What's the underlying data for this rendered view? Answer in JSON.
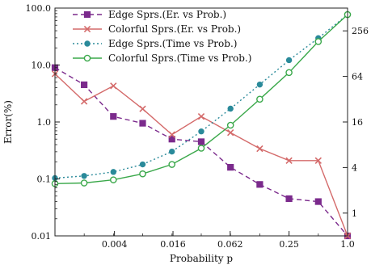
{
  "chart_data": {
    "type": "line",
    "xlabel": "Probability p",
    "ylabel": "Error(%)",
    "x_scale": "log2",
    "y_scale": "log10",
    "y2_scale": "log2",
    "xlim": [
      0.000977,
      1.0
    ],
    "ylim": [
      0.01,
      100.0
    ],
    "y2lim": [
      0.5,
      512
    ],
    "x_ticks": [
      0.004,
      0.016,
      0.062,
      0.25,
      1.0
    ],
    "x_tick_labels": [
      "0.004",
      "0.016",
      "0.062",
      "0.25",
      "1.0"
    ],
    "y_ticks": [
      0.01,
      0.1,
      1.0,
      10.0,
      100.0
    ],
    "y_tick_labels": [
      "0.01",
      "0.1",
      "1.0",
      "10.0",
      "100.0"
    ],
    "y2_ticks": [
      1,
      4,
      16,
      64,
      256
    ],
    "y2_tick_labels": [
      "1",
      "4",
      "16",
      "64",
      "256"
    ],
    "legend_position": "top-left",
    "grid": false,
    "series": [
      {
        "name": "Edge Sprs.(Er. vs Prob.)",
        "axis": "left",
        "color": "#7b2a8c",
        "dash": "dashed",
        "marker": "square",
        "x": [
          0.000977,
          0.00195,
          0.0039,
          0.0078,
          0.0156,
          0.03125,
          0.0625,
          0.125,
          0.25,
          0.5,
          1.0
        ],
        "y": [
          9.0,
          4.5,
          1.25,
          0.95,
          0.5,
          0.45,
          0.16,
          0.08,
          0.045,
          0.04,
          0.01
        ]
      },
      {
        "name": "Colorful Sprs.(Er. vs Prob.)",
        "axis": "left",
        "color": "#d46a6a",
        "dash": "solid",
        "marker": "x",
        "x": [
          0.000977,
          0.00195,
          0.0039,
          0.0078,
          0.0156,
          0.03125,
          0.0625,
          0.125,
          0.25,
          0.5,
          1.0
        ],
        "y": [
          7.0,
          2.3,
          4.3,
          1.7,
          0.6,
          1.25,
          0.65,
          0.34,
          0.21,
          0.21,
          0.01
        ]
      },
      {
        "name": "Edge Sprs.(Time vs Prob.)",
        "axis": "right",
        "color": "#2a8a9a",
        "dash": "dotted",
        "marker": "circle-filled",
        "x": [
          0.000977,
          0.00195,
          0.0039,
          0.0078,
          0.0156,
          0.03125,
          0.0625,
          0.125,
          0.25,
          0.5,
          1.0
        ],
        "y": [
          2.9,
          3.1,
          3.5,
          4.4,
          6.5,
          12,
          24,
          50,
          105,
          205,
          420
        ]
      },
      {
        "name": "Colorful Sprs.(Time vs Prob.)",
        "axis": "right",
        "color": "#3aa84a",
        "dash": "solid",
        "marker": "circle-open",
        "x": [
          0.000977,
          0.00195,
          0.0039,
          0.0078,
          0.0156,
          0.03125,
          0.0625,
          0.125,
          0.25,
          0.5,
          1.0
        ],
        "y": [
          2.45,
          2.5,
          2.75,
          3.3,
          4.4,
          7.2,
          14.5,
          32,
          72,
          185,
          420
        ]
      }
    ]
  }
}
